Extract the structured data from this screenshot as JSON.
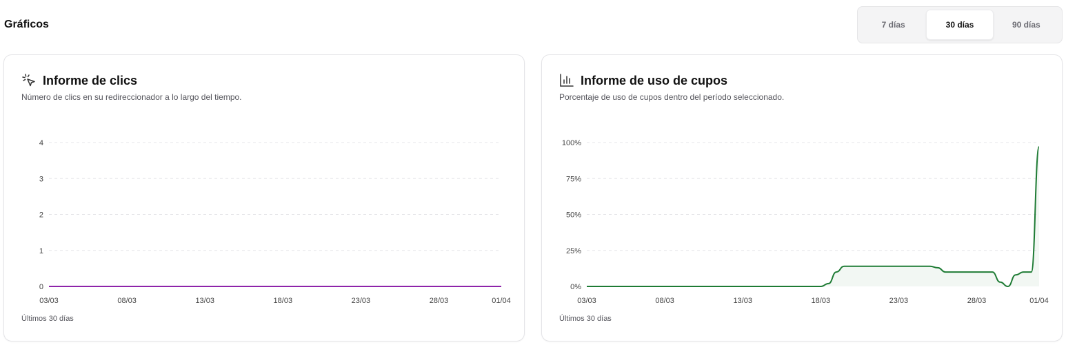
{
  "header": {
    "title": "Gráficos"
  },
  "range_toggle": {
    "options": [
      {
        "label": "7 días",
        "active": false
      },
      {
        "label": "30 días",
        "active": true
      },
      {
        "label": "90 días",
        "active": false
      }
    ]
  },
  "cards": {
    "clicks": {
      "title": "Informe de clics",
      "subtitle": "Número de clics en su redireccionador a lo largo del tiempo.",
      "footer": "Últimos 30 días",
      "icon": "cursor-click-icon"
    },
    "quota": {
      "title": "Informe de uso de cupos",
      "subtitle": "Porcentaje de uso de cupos dentro del período seleccionado.",
      "footer": "Últimos 30 días",
      "icon": "bar-chart-icon"
    }
  },
  "chart_data": [
    {
      "type": "line",
      "x_ticks": [
        "03/03",
        "08/03",
        "13/03",
        "18/03",
        "23/03",
        "28/03",
        "01/04"
      ],
      "y_ticks": [
        "0",
        "1",
        "2",
        "3",
        "4"
      ],
      "ylim": [
        0,
        4
      ],
      "color": "#8e24aa",
      "grid": true,
      "series": [
        {
          "x": [
            0,
            29
          ],
          "values": [
            0,
            0
          ]
        }
      ]
    },
    {
      "type": "area",
      "x_ticks": [
        "03/03",
        "08/03",
        "13/03",
        "18/03",
        "23/03",
        "28/03",
        "01/04"
      ],
      "y_ticks": [
        "0%",
        "25%",
        "50%",
        "75%",
        "100%"
      ],
      "ylim": [
        0,
        100
      ],
      "color": "#1e7b34",
      "grid": true,
      "series": [
        {
          "x": [
            0,
            15,
            15.5,
            16,
            16.5,
            17,
            22,
            22.5,
            23,
            23.5,
            24,
            26,
            26.5,
            27,
            27.5,
            28,
            28.5,
            29
          ],
          "values": [
            0,
            0,
            2,
            10,
            14,
            14,
            14,
            13,
            10,
            10,
            10,
            10,
            3,
            0,
            8,
            10,
            10,
            97
          ]
        }
      ]
    }
  ]
}
